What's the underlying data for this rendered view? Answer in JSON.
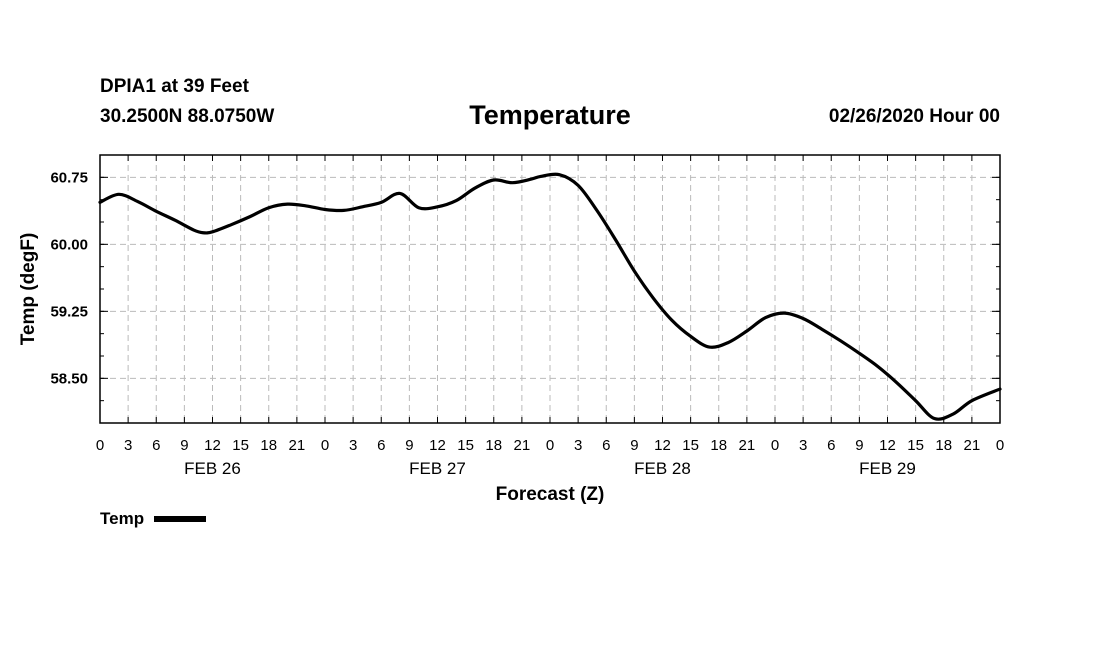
{
  "header": {
    "station": "DPIA1 at 39 Feet",
    "coordinates": "30.2500N 88.0750W",
    "issued": "02/26/2020 Hour 00"
  },
  "legend": {
    "label": "Temp",
    "color": "#000000"
  },
  "chart_data": {
    "type": "line",
    "title": "Temperature",
    "xlabel": "Forecast (Z)",
    "ylabel": "Temp (degF)",
    "xlim": [
      0,
      96
    ],
    "ylim": [
      58.0,
      61.0
    ],
    "yticks": [
      58.5,
      59.25,
      60.0,
      60.75
    ],
    "ytick_labels": [
      "58.50",
      "59.25",
      "60.00",
      "60.75"
    ],
    "xtick_hours": [
      0,
      3,
      6,
      9,
      12,
      15,
      18,
      21,
      24,
      27,
      30,
      33,
      36,
      39,
      42,
      45,
      48,
      51,
      54,
      57,
      60,
      63,
      66,
      69,
      72,
      75,
      78,
      81,
      84,
      87,
      90,
      93,
      96
    ],
    "xtick_labels": [
      "0",
      "3",
      "6",
      "9",
      "12",
      "15",
      "18",
      "21",
      "0",
      "3",
      "6",
      "9",
      "12",
      "15",
      "18",
      "21",
      "0",
      "3",
      "6",
      "9",
      "12",
      "15",
      "18",
      "21",
      "0",
      "3",
      "6",
      "9",
      "12",
      "15",
      "18",
      "21",
      "0"
    ],
    "day_labels": [
      {
        "hour": 12,
        "label": "FEB 26"
      },
      {
        "hour": 36,
        "label": "FEB 27"
      },
      {
        "hour": 60,
        "label": "FEB 28"
      },
      {
        "hour": 84,
        "label": "FEB 29"
      }
    ],
    "grid": true,
    "legend_position": "bottom-left",
    "series": [
      {
        "name": "Temp",
        "x": [
          0,
          2,
          4,
          6,
          8,
          10,
          11,
          12,
          14,
          16,
          18,
          20,
          22,
          24,
          26,
          28,
          30,
          32,
          34,
          36,
          38,
          40,
          42,
          44,
          46,
          47,
          49,
          51,
          53,
          55,
          57,
          59,
          61,
          63,
          65,
          67,
          69,
          71,
          73,
          75,
          77,
          79,
          81,
          83,
          85,
          87,
          89,
          91,
          93,
          96
        ],
        "values": [
          60.47,
          60.56,
          60.48,
          60.37,
          60.27,
          60.16,
          60.13,
          60.14,
          60.22,
          60.31,
          60.41,
          60.45,
          60.43,
          60.39,
          60.38,
          60.42,
          60.47,
          60.57,
          60.41,
          60.42,
          60.49,
          60.63,
          60.72,
          60.69,
          60.73,
          60.76,
          60.78,
          60.66,
          60.38,
          60.05,
          59.7,
          59.4,
          59.15,
          58.97,
          58.85,
          58.9,
          59.03,
          59.18,
          59.23,
          59.17,
          59.05,
          58.92,
          58.78,
          58.63,
          58.45,
          58.25,
          58.05,
          58.1,
          58.25,
          58.38
        ]
      }
    ]
  }
}
